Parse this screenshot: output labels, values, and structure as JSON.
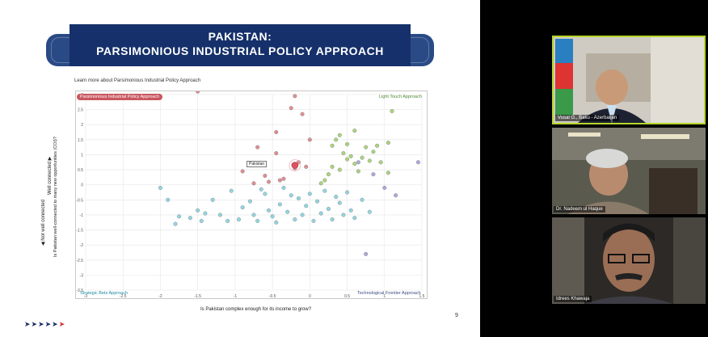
{
  "slide": {
    "title_line1": "PAKISTAN:",
    "title_line2": "PARSIMONIOUS INDUSTRIAL POLICY APPROACH",
    "learn_more": "Learn more about Parsimonious Industrial Policy Approach",
    "page_number": "9",
    "nav_arrows": "➤➤➤➤➤",
    "nav_arrow_red": "➤"
  },
  "chart_data": {
    "type": "scatter",
    "xlabel": "Is Pakistan complex enough for its income to grow?",
    "ylabel_top": "Well connected ▶",
    "ylabel_mid": "Is Pakistan well-connected to many new opportunities (COI)?",
    "ylabel_bottom": "◀ Not well connected",
    "xlim": [
      -3,
      1.5
    ],
    "ylim": [
      -3.5,
      3
    ],
    "x_ticks": [
      "-3",
      "-2.5",
      "-2",
      "-1.5",
      "-1",
      "-0.5",
      "0",
      "0.5",
      "1",
      "1.5"
    ],
    "y_ticks": [
      "3",
      "2.5",
      "2",
      "1.5",
      "1",
      "0.5",
      "0",
      "-0.5",
      "-1",
      "-1.5",
      "-2",
      "-2.5",
      "-3",
      "-3.5"
    ],
    "quadrants": {
      "top_left": "Parsimonious Industrial Policy Approach",
      "top_right": "Light Touch Approach",
      "bottom_left": "Strategic Bets Approach",
      "bottom_right": "Technological Frontier Approach"
    },
    "highlight": {
      "label": "Pakistan",
      "x": -0.2,
      "y": 0.65
    },
    "colors": {
      "parsimonious": "#d97a80",
      "light": "#9ccc6a",
      "strategic": "#7fcfdc",
      "frontier": "#9c9ad6"
    },
    "series": [
      {
        "group": "parsimonious",
        "points": [
          [
            -1.5,
            3.1
          ],
          [
            -0.2,
            2.95
          ],
          [
            -0.25,
            2.55
          ],
          [
            -0.1,
            2.35
          ],
          [
            -0.45,
            1.75
          ],
          [
            0,
            1.5
          ],
          [
            -0.7,
            1.25
          ],
          [
            -0.45,
            1.05
          ],
          [
            -0.15,
            0.75
          ],
          [
            -0.05,
            0.6
          ],
          [
            -0.2,
            0.55
          ],
          [
            -0.9,
            0.45
          ],
          [
            -0.6,
            0.3
          ],
          [
            -0.35,
            0.2
          ],
          [
            -0.55,
            0.1
          ],
          [
            -0.75,
            0.05
          ],
          [
            -0.4,
            0.15
          ]
        ]
      },
      {
        "group": "light",
        "points": [
          [
            0.6,
            1.8
          ],
          [
            0.4,
            1.65
          ],
          [
            0.35,
            1.5
          ],
          [
            0.5,
            1.35
          ],
          [
            0.9,
            1.3
          ],
          [
            0.75,
            1.25
          ],
          [
            0.85,
            1.1
          ],
          [
            0.45,
            1.05
          ],
          [
            0.55,
            0.95
          ],
          [
            0.7,
            0.9
          ],
          [
            0.8,
            0.8
          ],
          [
            0.95,
            0.75
          ],
          [
            0.6,
            0.7
          ],
          [
            0.3,
            0.6
          ],
          [
            0.4,
            0.5
          ],
          [
            0.65,
            0.45
          ],
          [
            0.25,
            0.35
          ],
          [
            1.05,
            0.4
          ],
          [
            0.2,
            0.15
          ],
          [
            0.15,
            0.05
          ],
          [
            1.1,
            2.45
          ],
          [
            1.05,
            1.4
          ],
          [
            0.5,
            0.85
          ],
          [
            0.3,
            1.3
          ]
        ]
      },
      {
        "group": "strategic",
        "points": [
          [
            -2,
            -0.1
          ],
          [
            -1.9,
            -0.5
          ],
          [
            -1.75,
            -1.05
          ],
          [
            -1.8,
            -1.3
          ],
          [
            -1.6,
            -1.1
          ],
          [
            -1.5,
            -0.85
          ],
          [
            -1.45,
            -1.2
          ],
          [
            -1.3,
            -0.5
          ],
          [
            -1.2,
            -1.0
          ],
          [
            -1.1,
            -1.2
          ],
          [
            -1.05,
            -0.2
          ],
          [
            -0.95,
            -1.15
          ],
          [
            -0.9,
            -0.75
          ],
          [
            -0.8,
            -0.55
          ],
          [
            -0.75,
            -1.0
          ],
          [
            -0.7,
            -1.2
          ],
          [
            -0.6,
            -0.3
          ],
          [
            -0.55,
            -0.85
          ],
          [
            -0.5,
            -1.05
          ],
          [
            -0.45,
            -1.25
          ],
          [
            -0.4,
            -0.65
          ],
          [
            -0.35,
            -0.1
          ],
          [
            -0.3,
            -0.9
          ],
          [
            -0.25,
            -0.35
          ],
          [
            -0.2,
            -1.15
          ],
          [
            -0.15,
            -0.45
          ],
          [
            -0.1,
            -1.0
          ],
          [
            -0.05,
            -0.7
          ],
          [
            0,
            -0.3
          ],
          [
            0.05,
            -1.2
          ],
          [
            0.1,
            -0.55
          ],
          [
            0.15,
            -0.95
          ],
          [
            0.2,
            -0.2
          ],
          [
            0.25,
            -0.8
          ],
          [
            0.3,
            -1.15
          ],
          [
            0.35,
            -0.4
          ],
          [
            0.4,
            -0.6
          ],
          [
            0.45,
            -1.0
          ],
          [
            0.5,
            -0.25
          ],
          [
            0.55,
            -0.85
          ],
          [
            0.6,
            -1.1
          ],
          [
            0.7,
            -0.5
          ],
          [
            0.8,
            -0.9
          ],
          [
            -0.65,
            -0.15
          ],
          [
            -1.4,
            -0.95
          ]
        ]
      },
      {
        "group": "frontier",
        "points": [
          [
            0.75,
            -2.3
          ],
          [
            1.15,
            -0.35
          ],
          [
            1.45,
            0.75
          ],
          [
            0.85,
            0.35
          ],
          [
            1.0,
            -0.1
          ],
          [
            0.65,
            0.75
          ]
        ]
      }
    ]
  },
  "participants": [
    {
      "name": "Vusal G., Baku - Azerbaijan",
      "active": true
    },
    {
      "name": "Dr. Nadeem ul Haque",
      "active": false
    },
    {
      "name": "Idrees Khawaja",
      "active": false
    }
  ]
}
